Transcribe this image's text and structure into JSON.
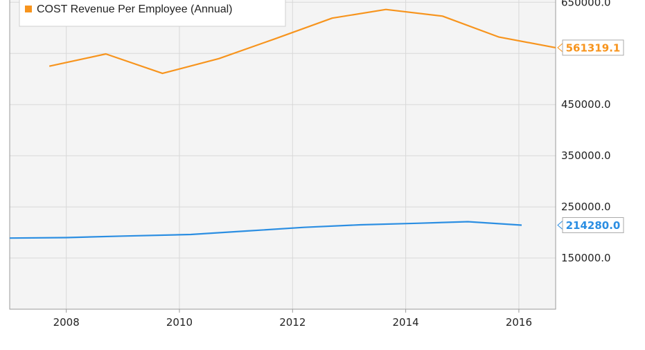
{
  "chart_data": {
    "type": "line",
    "x_unit": "year",
    "xlim": [
      2007.0,
      2016.65
    ],
    "ylim": [
      50000,
      668000
    ],
    "x_ticks": [
      2008,
      2010,
      2012,
      2014,
      2016
    ],
    "x_tick_labels": [
      "2008",
      "2010",
      "2012",
      "2014",
      "2016"
    ],
    "y_ticks": [
      150000,
      250000,
      350000,
      450000,
      550000,
      650000
    ],
    "y_tick_labels": [
      "150000.0",
      "250000.0",
      "350000.0",
      "450000.0",
      "",
      "650000.0"
    ],
    "grid": true,
    "legend_position": "top-left",
    "series": [
      {
        "name": "COST Revenue Per Employee (Annual)",
        "color": "#f7941d",
        "last_value_label": "561319.1",
        "points": [
          [
            2007.7,
            525000
          ],
          [
            2008.7,
            549000
          ],
          [
            2009.7,
            511000
          ],
          [
            2010.7,
            540000
          ],
          [
            2011.7,
            579000
          ],
          [
            2012.7,
            619000
          ],
          [
            2013.65,
            636000
          ],
          [
            2014.65,
            623000
          ],
          [
            2015.65,
            582000
          ],
          [
            2016.65,
            561319.1
          ]
        ]
      },
      {
        "name": "",
        "color": "#2b8ee2",
        "last_value_label": "214280.0",
        "points": [
          [
            2007.0,
            189000
          ],
          [
            2008.0,
            190000
          ],
          [
            2009.0,
            193000
          ],
          [
            2010.2,
            196000
          ],
          [
            2011.2,
            203000
          ],
          [
            2012.2,
            210000
          ],
          [
            2013.2,
            215000
          ],
          [
            2014.2,
            218000
          ],
          [
            2015.1,
            221000
          ],
          [
            2016.05,
            214280.0
          ]
        ]
      }
    ]
  }
}
